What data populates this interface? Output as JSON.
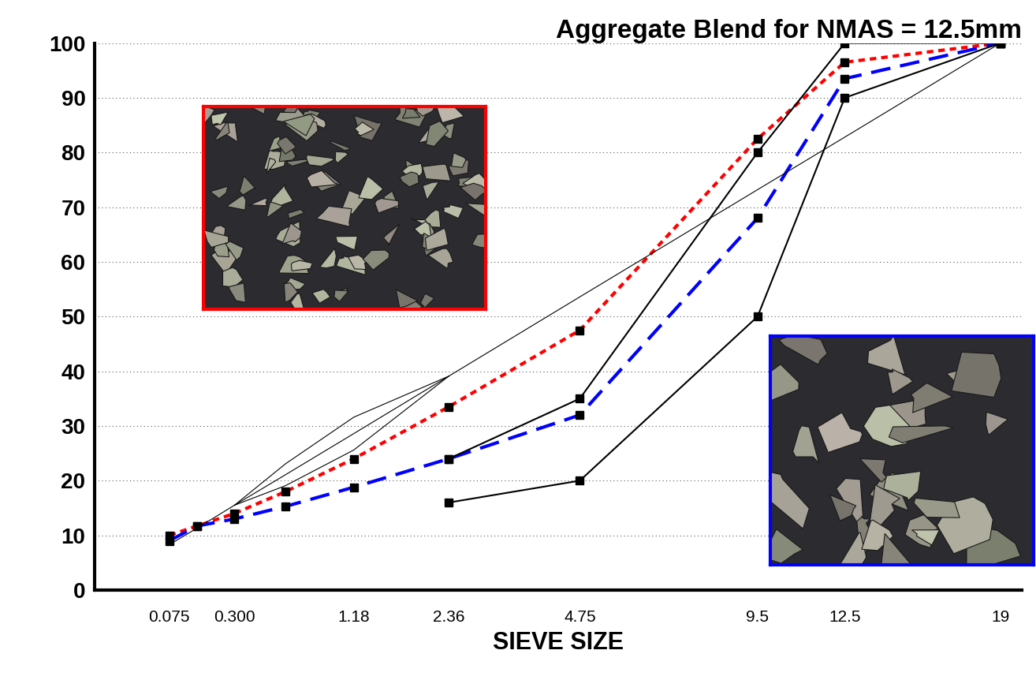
{
  "chart_data": {
    "type": "line",
    "title": "Aggregate Blend for NMAS = 12.5mm",
    "x_label": "SIEVE SIZE",
    "x": [
      0.075,
      0.15,
      0.3,
      0.6,
      1.18,
      2.36,
      4.75,
      9.5,
      12.5,
      19
    ],
    "series": [
      {
        "color": "#ff0000",
        "line_style": "dotted",
        "marker": "square",
        "values": [
          10,
          11.7,
          14,
          18,
          24,
          33.5,
          47.5,
          82.5,
          96.5,
          100
        ]
      },
      {
        "color": "#0000ff",
        "line_style": "dashed",
        "marker": "square",
        "values": [
          9,
          11.7,
          13,
          15.3,
          18.8,
          24,
          32,
          68,
          93.5,
          100
        ]
      },
      {
        "color": "#000000",
        "line_style": "solid",
        "marker": "square",
        "values": [
          null,
          null,
          null,
          null,
          null,
          24,
          35,
          80,
          100,
          100
        ]
      },
      {
        "color": "#000000",
        "line_style": "solid",
        "marker": "square",
        "values": [
          null,
          null,
          null,
          null,
          null,
          16,
          20,
          50,
          90,
          100
        ]
      },
      {
        "color": "#000000",
        "line_style": "solid",
        "marker": "none",
        "values": [
          8.3,
          11.3,
          15.5,
          21.1,
          28.6,
          39.1,
          53.6,
          73.2,
          82.8,
          100
        ]
      },
      {
        "color": "#000000",
        "line_style": "solid",
        "marker": "none",
        "values": [
          null,
          null,
          15.5,
          23.1,
          31.6,
          39.1,
          null,
          null,
          null,
          null
        ]
      },
      {
        "color": "#000000",
        "line_style": "solid",
        "marker": "none",
        "values": [
          null,
          null,
          15.5,
          19.1,
          25.6,
          39.1,
          null,
          null,
          null,
          null
        ]
      }
    ],
    "xlim": [
      0,
      20
    ],
    "xticks": [
      0.075,
      {
        "value": 0.3,
        "label": "0.300"
      },
      1.18,
      2.36,
      4.75,
      9.5,
      12.5,
      19
    ],
    "ylim": [
      0,
      100
    ],
    "yticks": [
      0,
      10,
      20,
      30,
      40,
      50,
      60,
      70,
      80,
      90,
      100
    ],
    "grid": "y"
  }
}
